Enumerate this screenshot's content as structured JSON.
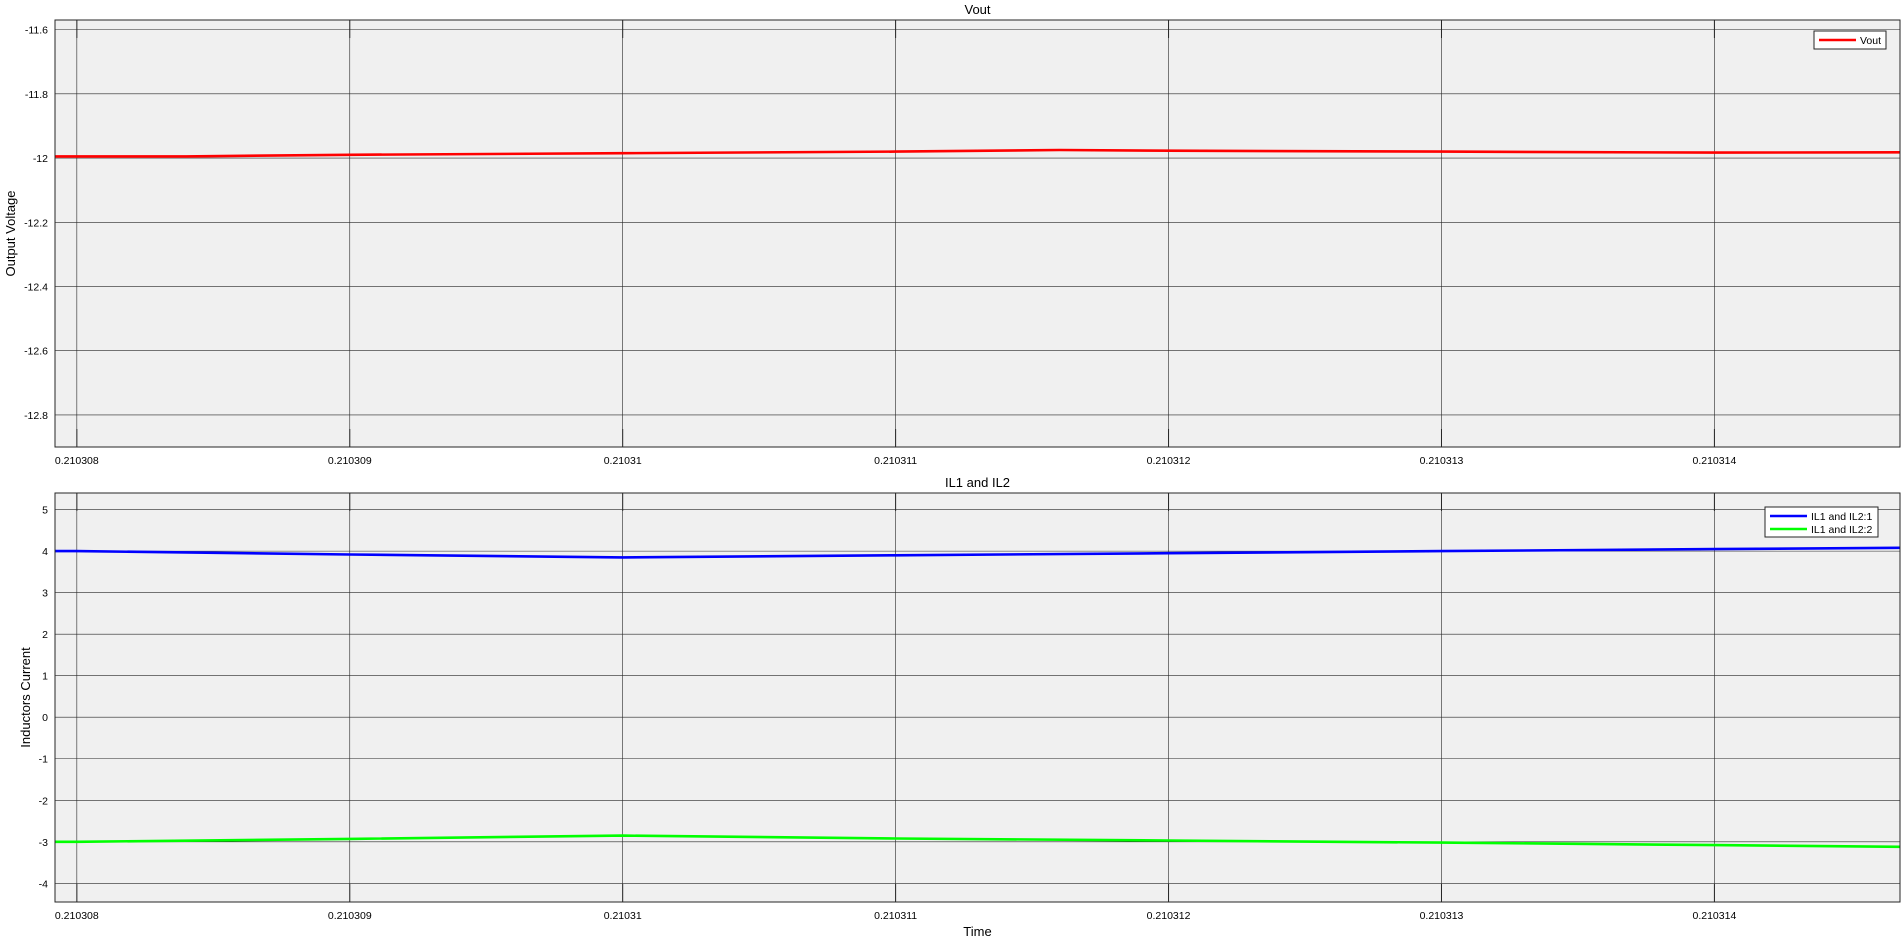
{
  "chart_data": [
    {
      "type": "line",
      "title": "Vout",
      "xlabel": "",
      "ylabel": "Output Voltage",
      "xlim": [
        0.21030792,
        0.21031468
      ],
      "ylim": [
        -12.9,
        -11.57
      ],
      "xticks": [
        0.210308,
        0.210309,
        0.21031,
        0.210311,
        0.210312,
        0.210313,
        0.210314
      ],
      "xtick_labels": [
        "0.210308",
        "0.210309",
        "0.21031",
        "0.210311",
        "0.210312",
        "0.210313",
        "0.210314"
      ],
      "yticks": [
        -12.8,
        -12.6,
        -12.4,
        -12.2,
        -12,
        -11.8,
        -11.6
      ],
      "ytick_labels": [
        "-12.8",
        "-12.6",
        "-12.4",
        "-12.2",
        "-12",
        "-11.8",
        "-11.6"
      ],
      "grid": true,
      "legend_position": "top-right",
      "series": [
        {
          "name": "Vout",
          "color": "#ff0000",
          "x": [
            0.21030792,
            0.2103084,
            0.210309,
            0.21031,
            0.210311,
            0.2103116,
            0.210312,
            0.210313,
            0.210314,
            0.21031468
          ],
          "y": [
            -11.995,
            -11.995,
            -11.99,
            -11.985,
            -11.98,
            -11.975,
            -11.977,
            -11.98,
            -11.983,
            -11.982
          ]
        }
      ]
    },
    {
      "type": "line",
      "title": "IL1 and IL2",
      "xlabel": "Time",
      "ylabel": "Inductors Current",
      "xlim": [
        0.21030792,
        0.21031468
      ],
      "ylim": [
        -4.45,
        5.4
      ],
      "xticks": [
        0.210308,
        0.210309,
        0.21031,
        0.210311,
        0.210312,
        0.210313,
        0.210314
      ],
      "xtick_labels": [
        "0.210308",
        "0.210309",
        "0.21031",
        "0.210311",
        "0.210312",
        "0.210313",
        "0.210314"
      ],
      "yticks": [
        -4,
        -3,
        -2,
        -1,
        0,
        1,
        2,
        3,
        4,
        5
      ],
      "ytick_labels": [
        "-4",
        "-3",
        "-2",
        "-1",
        "0",
        "1",
        "2",
        "3",
        "4",
        "5"
      ],
      "grid": true,
      "legend_position": "top-right",
      "series": [
        {
          "name": "IL1 and IL2:1",
          "color": "#0000ff",
          "x": [
            0.21030792,
            0.210308,
            0.210309,
            0.21031,
            0.210311,
            0.210312,
            0.210313,
            0.210314,
            0.21031468
          ],
          "y": [
            4.0,
            4.0,
            3.92,
            3.85,
            3.9,
            3.95,
            4.0,
            4.05,
            4.08
          ]
        },
        {
          "name": "IL1 and IL2:2",
          "color": "#00ff00",
          "x": [
            0.21030792,
            0.210308,
            0.210309,
            0.21031,
            0.210311,
            0.210312,
            0.210313,
            0.210314,
            0.21031468
          ],
          "y": [
            -3.0,
            -3.0,
            -2.93,
            -2.85,
            -2.92,
            -2.97,
            -3.02,
            -3.08,
            -3.12
          ]
        }
      ]
    }
  ]
}
